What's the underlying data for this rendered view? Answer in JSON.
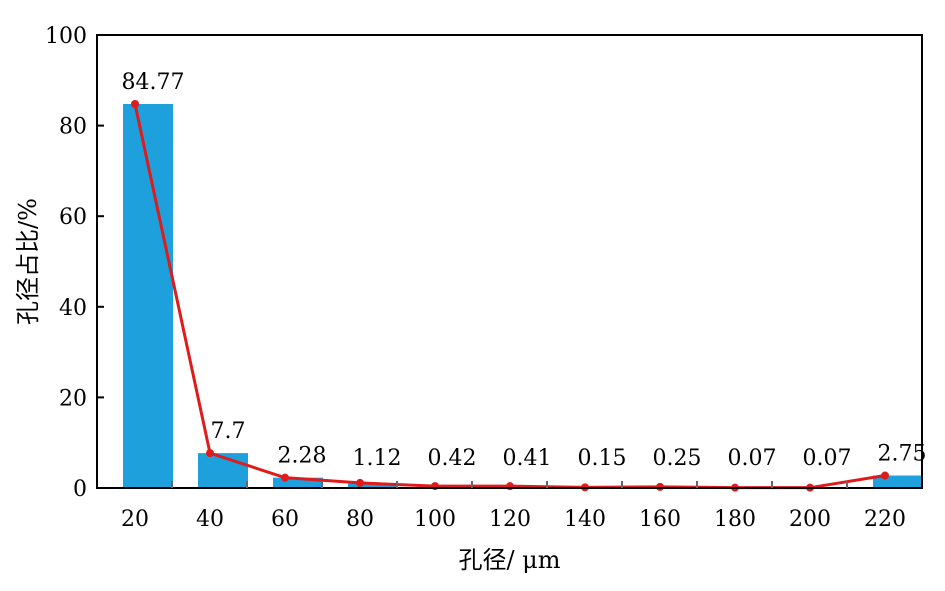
{
  "chart_data": {
    "type": "bar",
    "xlabel": "孔径/ μm",
    "ylabel": "孔径占比/%",
    "categories": [
      "20",
      "40",
      "60",
      "80",
      "100",
      "120",
      "140",
      "160",
      "180",
      "200",
      "220"
    ],
    "values": [
      84.77,
      7.7,
      2.28,
      1.12,
      0.42,
      0.41,
      0.15,
      0.25,
      0.07,
      0.07,
      2.75
    ],
    "data_labels": [
      "84.77",
      "7.7",
      "2.28",
      "1.12",
      "0.42",
      "0.41",
      "0.15",
      "0.25",
      "0.07",
      "0.07",
      "2.75"
    ],
    "ylim": [
      0,
      100
    ],
    "yticks": [
      0,
      20,
      40,
      60,
      80,
      100
    ],
    "overlay_line": true,
    "grid": false,
    "colors": {
      "bar": "#1ea0dc",
      "line": "#e01b1b",
      "axis": "#000000"
    }
  }
}
